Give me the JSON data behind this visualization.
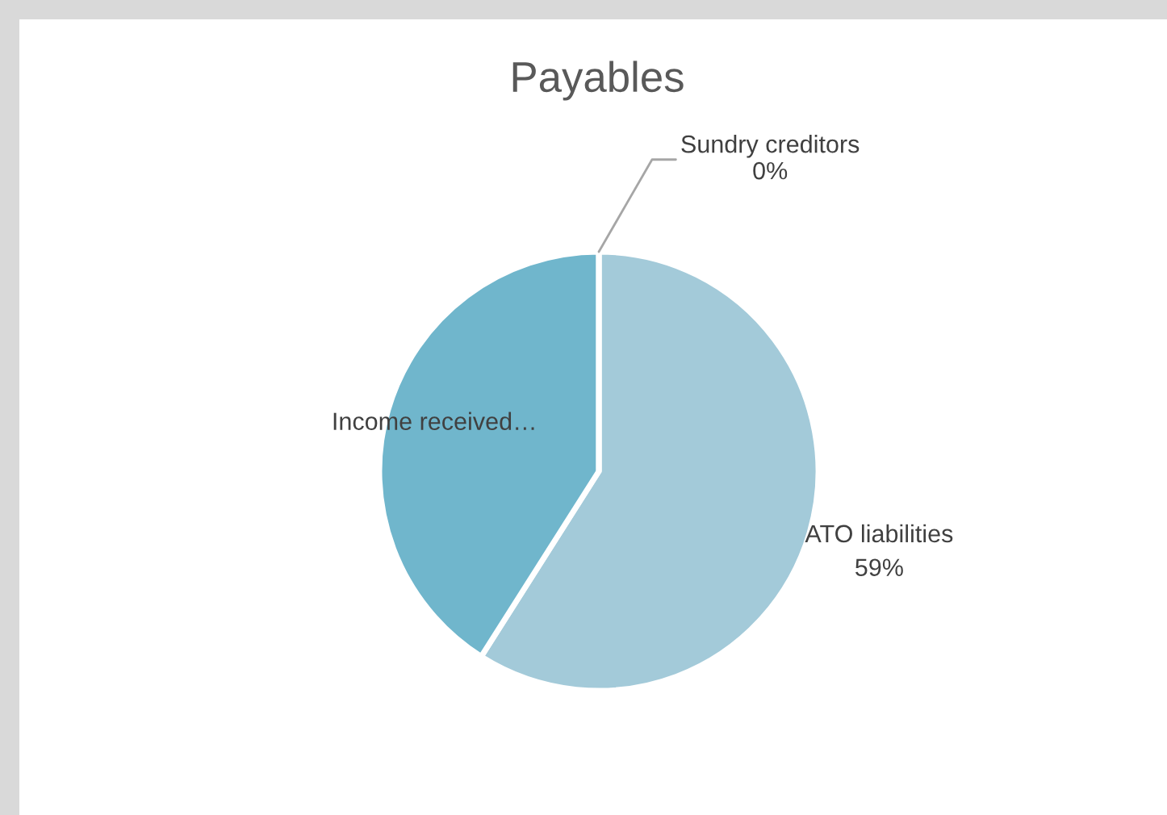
{
  "chart_data": {
    "type": "pie",
    "title": "Payables",
    "categories": [
      "ATO liabilities",
      "Income received…",
      "Sundry creditors"
    ],
    "values": [
      59,
      41,
      0
    ],
    "colors": [
      "#a3cad9",
      "#70b6cc",
      "#8fc0d2"
    ],
    "value_labels": [
      "59%",
      null,
      "0%"
    ],
    "legend": false
  }
}
